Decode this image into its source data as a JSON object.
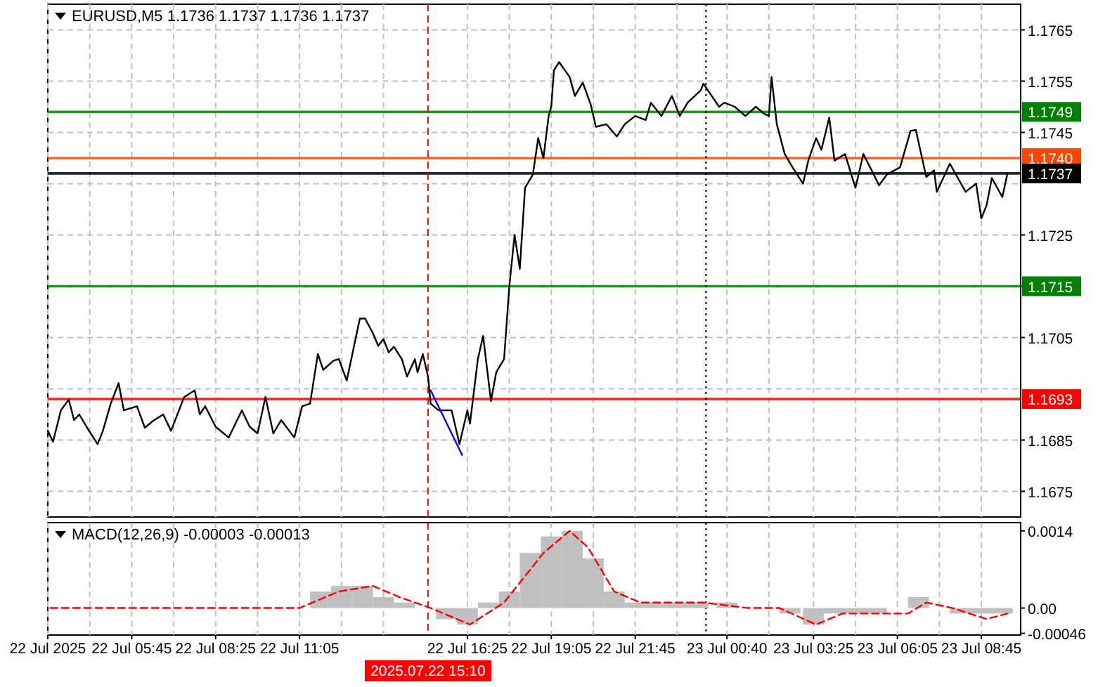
{
  "chart_data": [
    {
      "type": "line",
      "title": "EURUSD,M5 1.1736 1.1737 1.1736 1.1737",
      "xlim": [
        "2025-07-22T03:05",
        "2025-07-23T10:00"
      ],
      "ylim": [
        1.167,
        1.177
      ],
      "xticks": [
        {
          "value": "2025-07-22T03:05",
          "label": null
        },
        {
          "value": "2025-07-22T04:25",
          "label": null
        },
        {
          "value": "2025-07-22T05:45",
          "label": null
        },
        {
          "value": "2025-07-22T07:05",
          "label": null
        },
        {
          "value": "2025-07-22T08:25",
          "label": null
        },
        {
          "value": "2025-07-22T09:45",
          "label": null
        },
        {
          "value": "2025-07-22T11:05",
          "label": null
        },
        {
          "value": "2025-07-22T12:25",
          "label": null
        },
        {
          "value": "2025-07-22T13:45",
          "label": null
        },
        {
          "value": "2025-07-22T16:25",
          "label": null
        },
        {
          "value": "2025-07-22T17:45",
          "label": null
        },
        {
          "value": "2025-07-22T19:05",
          "label": null
        },
        {
          "value": "2025-07-22T20:25",
          "label": null
        },
        {
          "value": "2025-07-22T21:45",
          "label": null
        },
        {
          "value": "2025-07-22T23:05",
          "label": null
        },
        {
          "value": "2025-07-23T00:40",
          "label": null
        },
        {
          "value": "2025-07-23T02:00",
          "label": null
        },
        {
          "value": "2025-07-23T03:25",
          "label": null
        },
        {
          "value": "2025-07-23T04:45",
          "label": null
        },
        {
          "value": "2025-07-23T06:05",
          "label": null
        },
        {
          "value": "2025-07-23T07:25",
          "label": null
        },
        {
          "value": "2025-07-23T08:45",
          "label": null
        }
      ],
      "yticks": [
        1.1675,
        1.1685,
        {
          "value": 1.1695,
          "label": null
        },
        1.1705,
        1.1715,
        1.1725,
        {
          "value": 1.1735,
          "label": null
        },
        1.1745,
        1.1755,
        1.1765
      ],
      "tick_labels": "y",
      "grid": true,
      "series": [
        {
          "color": "#000000",
          "x": [
            "2025-07-22T03:05",
            "2025-07-22T03:15",
            "2025-07-22T03:30",
            "2025-07-22T03:45",
            "2025-07-22T03:55",
            "2025-07-22T04:05",
            "2025-07-22T04:20",
            "2025-07-22T04:40",
            "2025-07-22T04:50",
            "2025-07-22T05:05",
            "2025-07-22T05:20",
            "2025-07-22T05:30",
            "2025-07-22T05:55",
            "2025-07-22T06:10",
            "2025-07-22T06:25",
            "2025-07-22T06:45",
            "2025-07-22T07:00",
            "2025-07-22T07:25",
            "2025-07-22T07:45",
            "2025-07-22T07:55",
            "2025-07-22T08:05",
            "2025-07-22T08:25",
            "2025-07-22T08:50",
            "2025-07-22T09:15",
            "2025-07-22T09:30",
            "2025-07-22T09:45",
            "2025-07-22T10:00",
            "2025-07-22T10:15",
            "2025-07-22T10:30",
            "2025-07-22T10:55",
            "2025-07-22T11:10",
            "2025-07-22T11:25",
            "2025-07-22T11:40",
            "2025-07-22T11:50",
            "2025-07-22T12:10",
            "2025-07-22T12:20",
            "2025-07-22T12:35",
            "2025-07-22T13:00",
            "2025-07-22T13:10",
            "2025-07-22T13:25",
            "2025-07-22T13:35",
            "2025-07-22T13:45",
            "2025-07-22T13:55",
            "2025-07-22T14:05",
            "2025-07-22T14:20",
            "2025-07-22T14:30",
            "2025-07-22T14:45",
            "2025-07-22T14:50",
            "2025-07-22T15:00",
            "2025-07-22T15:10",
            "2025-07-22T15:15",
            "2025-07-22T15:30",
            "2025-07-22T15:55",
            "2025-07-22T16:10",
            "2025-07-22T16:25",
            "2025-07-22T16:30",
            "2025-07-22T16:45",
            "2025-07-22T16:55",
            "2025-07-22T17:10",
            "2025-07-22T17:20",
            "2025-07-22T17:35",
            "2025-07-22T17:45",
            "2025-07-22T17:55",
            "2025-07-22T18:05",
            "2025-07-22T18:15",
            "2025-07-22T18:30",
            "2025-07-22T18:40",
            "2025-07-22T18:50",
            "2025-07-22T19:00",
            "2025-07-22T19:05",
            "2025-07-22T19:10",
            "2025-07-22T19:20",
            "2025-07-22T19:40",
            "2025-07-22T19:50",
            "2025-07-22T20:05",
            "2025-07-22T20:20",
            "2025-07-22T20:30",
            "2025-07-22T20:50",
            "2025-07-22T21:10",
            "2025-07-22T21:25",
            "2025-07-22T21:45",
            "2025-07-22T22:05",
            "2025-07-22T22:15",
            "2025-07-22T22:35",
            "2025-07-22T22:55",
            "2025-07-22T23:10",
            "2025-07-22T23:25",
            "2025-07-22T23:50",
            "2025-07-22T23:55",
            "2025-07-23T00:25",
            "2025-07-23T00:35",
            "2025-07-23T00:55",
            "2025-07-23T01:15",
            "2025-07-23T01:35",
            "2025-07-23T01:50",
            "2025-07-23T02:00",
            "2025-07-23T02:05",
            "2025-07-23T02:15",
            "2025-07-23T02:30",
            "2025-07-23T02:45",
            "2025-07-23T03:05",
            "2025-07-23T03:15",
            "2025-07-23T03:30",
            "2025-07-23T03:40",
            "2025-07-23T03:55",
            "2025-07-23T04:05",
            "2025-07-23T04:25",
            "2025-07-23T04:45",
            "2025-07-23T05:00",
            "2025-07-23T05:30",
            "2025-07-23T05:45",
            "2025-07-23T06:10",
            "2025-07-23T06:30",
            "2025-07-23T06:40",
            "2025-07-23T07:00",
            "2025-07-23T07:15",
            "2025-07-23T07:20",
            "2025-07-23T07:45",
            "2025-07-23T08:15",
            "2025-07-23T08:35",
            "2025-07-23T08:45",
            "2025-07-23T08:55",
            "2025-07-23T09:05",
            "2025-07-23T09:25",
            "2025-07-23T09:35"
          ],
          "values": [
            1.16868,
            1.16847,
            1.16908,
            1.16929,
            1.16889,
            1.169,
            1.16874,
            1.16842,
            1.16868,
            1.16921,
            1.16961,
            1.16908,
            1.16916,
            1.16874,
            1.16887,
            1.169,
            1.16868,
            1.16934,
            1.16947,
            1.169,
            1.16916,
            1.16876,
            1.16855,
            1.16908,
            1.16876,
            1.16863,
            1.16934,
            1.16863,
            1.16889,
            1.16855,
            1.16916,
            1.16921,
            1.17018,
            1.16987,
            1.17005,
            1.17008,
            1.16966,
            1.17087,
            1.17087,
            1.17058,
            1.17034,
            1.17047,
            1.17021,
            1.17032,
            1.17008,
            1.16974,
            1.17008,
            1.16982,
            1.17018,
            1.16974,
            1.16921,
            1.16908,
            1.16908,
            1.16842,
            1.16908,
            1.16882,
            1.17008,
            1.17053,
            1.16926,
            1.16982,
            1.17008,
            1.1715,
            1.1725,
            1.17184,
            1.17342,
            1.17368,
            1.17439,
            1.174,
            1.17482,
            1.175,
            1.17571,
            1.17587,
            1.17558,
            1.17521,
            1.17547,
            1.17505,
            1.17461,
            1.17466,
            1.17442,
            1.17466,
            1.17482,
            1.17474,
            1.17508,
            1.17482,
            1.17521,
            1.17482,
            1.17508,
            1.17532,
            1.17545,
            1.175,
            1.17508,
            1.175,
            1.17482,
            1.175,
            1.17487,
            1.17482,
            1.17558,
            1.17466,
            1.17408,
            1.17382,
            1.1735,
            1.17395,
            1.17439,
            1.17416,
            1.17479,
            1.17395,
            1.17408,
            1.17342,
            1.17408,
            1.17347,
            1.17368,
            1.17382,
            1.17453,
            1.17455,
            1.17363,
            1.17376,
            1.17334,
            1.17389,
            1.17334,
            1.1735,
            1.17282,
            1.17308,
            1.17361,
            1.17324,
            1.17371
          ]
        },
        {
          "color": "#0000ff",
          "x": [
            "2025-07-22T15:15",
            "2025-07-22T16:15"
          ],
          "values": [
            1.16947,
            1.16821
          ]
        }
      ],
      "ref_lines": [
        {
          "axis": "y",
          "value": 1.1749,
          "label": "1.1749",
          "color": "#008000"
        },
        {
          "axis": "y",
          "value": 1.174,
          "label": "1.1740",
          "color": "#ff4500"
        },
        {
          "axis": "y",
          "value": 1.1737,
          "label": "1.1737",
          "color": "#000000"
        },
        {
          "axis": "y",
          "value": 1.1715,
          "label": "1.1715",
          "color": "#008000"
        },
        {
          "axis": "y",
          "value": 1.1693,
          "label": "1.1693",
          "color": "#ff0000"
        },
        {
          "axis": "x",
          "value": "2025-07-22T15:10",
          "color": "#ff0000",
          "line_style": "dashed"
        },
        {
          "axis": "x",
          "value": "2025-07-23T00:00",
          "color": "#000000",
          "line_style": "dotted"
        }
      ]
    },
    {
      "type": "bar",
      "title": "MACD(12,26,9) -0.00003 -0.00013",
      "xlim": [
        "2025-07-22T03:05",
        "2025-07-23T10:00"
      ],
      "ylim": [
        -0.00049,
        0.00155
      ],
      "xticks": [
        {
          "value": "2025-07-22T03:05",
          "label": "22 Jul 2025"
        },
        {
          "value": "2025-07-22T04:25",
          "label": null
        },
        {
          "value": "2025-07-22T05:45",
          "label": "22 Jul 05:45"
        },
        {
          "value": "2025-07-22T07:05",
          "label": null
        },
        {
          "value": "2025-07-22T08:25",
          "label": "22 Jul 08:25"
        },
        {
          "value": "2025-07-22T09:45",
          "label": null
        },
        {
          "value": "2025-07-22T11:05",
          "label": "22 Jul 11:05"
        },
        {
          "value": "2025-07-22T12:25",
          "label": null
        },
        {
          "value": "2025-07-22T13:45",
          "label": null
        },
        {
          "value": "2025-07-22T16:25",
          "label": "22 Jul 16:25"
        },
        {
          "value": "2025-07-22T17:45",
          "label": null
        },
        {
          "value": "2025-07-22T19:05",
          "label": "22 Jul 19:05"
        },
        {
          "value": "2025-07-22T20:25",
          "label": null
        },
        {
          "value": "2025-07-22T21:45",
          "label": "22 Jul 21:45"
        },
        {
          "value": "2025-07-22T23:05",
          "label": null
        },
        {
          "value": "2025-07-23T00:40",
          "label": "23 Jul 00:40"
        },
        {
          "value": "2025-07-23T02:00",
          "label": null
        },
        {
          "value": "2025-07-23T03:25",
          "label": "23 Jul 03:25"
        },
        {
          "value": "2025-07-23T04:45",
          "label": null
        },
        {
          "value": "2025-07-23T06:05",
          "label": "23 Jul 06:05"
        },
        {
          "value": "2025-07-23T07:25",
          "label": null
        },
        {
          "value": "2025-07-23T08:45",
          "label": "23 Jul 08:45"
        }
      ],
      "yticks": [
        -0.00046,
        {
          "value": 0,
          "label": "0.00"
        },
        0.0014
      ],
      "grid": "x",
      "series": [
        {
          "color": "#c0c0c0",
          "x": [
            "2025-07-22T03:05",
            "2025-07-22T03:45",
            "2025-07-22T04:25",
            "2025-07-22T05:05",
            "2025-07-22T05:45",
            "2025-07-22T06:25",
            "2025-07-22T07:05",
            "2025-07-22T07:45",
            "2025-07-22T08:25",
            "2025-07-22T09:05",
            "2025-07-22T09:45",
            "2025-07-22T10:25",
            "2025-07-22T11:05",
            "2025-07-22T11:45",
            "2025-07-22T12:25",
            "2025-07-22T13:05",
            "2025-07-22T13:45",
            "2025-07-22T14:25",
            "2025-07-22T15:05",
            "2025-07-22T15:45",
            "2025-07-22T16:25",
            "2025-07-22T17:05",
            "2025-07-22T17:45",
            "2025-07-22T18:25",
            "2025-07-22T19:05",
            "2025-07-22T19:45",
            "2025-07-22T20:25",
            "2025-07-22T21:05",
            "2025-07-22T21:45",
            "2025-07-22T22:25",
            "2025-07-22T23:05",
            "2025-07-22T23:45",
            "2025-07-23T00:40",
            "2025-07-23T01:20",
            "2025-07-23T02:00",
            "2025-07-23T02:40",
            "2025-07-23T03:25",
            "2025-07-23T04:05",
            "2025-07-23T04:45",
            "2025-07-23T05:25",
            "2025-07-23T06:05",
            "2025-07-23T06:45",
            "2025-07-23T07:25",
            "2025-07-23T08:05",
            "2025-07-23T08:45",
            "2025-07-23T09:25"
          ],
          "values": [
            0,
            0,
            0,
            0,
            0,
            0,
            0,
            0,
            0,
            0,
            0,
            0,
            0,
            0.0003,
            0.0004,
            0.0004,
            0.0002,
            0.0001,
            0,
            -0.0002,
            -0.0003,
            0.0001,
            0.0003,
            0.001,
            0.0013,
            0.0014,
            0.0009,
            0.0003,
            0.0001,
            0.0001,
            0.0001,
            0.0001,
            0.0001,
            0,
            0,
            -0.0001,
            -0.0003,
            -0.0001,
            -0.0001,
            -0.0001,
            0,
            0.0002,
            0,
            -0.0001,
            -0.0001,
            -0.0001
          ]
        },
        {
          "type": "line",
          "color": "#ff0000",
          "line_style": "dashed",
          "x": [
            "2025-07-22T03:10",
            "2025-07-22T05:05",
            "2025-07-22T07:10",
            "2025-07-22T09:15",
            "2025-07-22T11:05",
            "2025-07-22T12:20",
            "2025-07-22T13:25",
            "2025-07-22T14:15",
            "2025-07-22T15:15",
            "2025-07-22T16:30",
            "2025-07-22T17:35",
            "2025-07-22T18:50",
            "2025-07-22T19:40",
            "2025-07-22T20:15",
            "2025-07-22T21:05",
            "2025-07-22T21:55",
            "2025-07-22T23:00",
            "2025-07-22T23:55",
            "2025-07-23T01:20",
            "2025-07-23T02:20",
            "2025-07-23T03:30",
            "2025-07-23T04:20",
            "2025-07-23T05:20",
            "2025-07-23T06:25",
            "2025-07-23T07:00",
            "2025-07-23T07:50",
            "2025-07-23T08:55",
            "2025-07-23T09:35"
          ],
          "values": [
            0,
            0,
            0,
            0,
            0,
            0.0003,
            0.0004,
            0.0002,
            0,
            -0.0003,
            0.0001,
            0.001,
            0.0014,
            0.0011,
            0.0003,
            0.0001,
            0.0001,
            0.0001,
            0,
            0,
            -0.0003,
            -0.0001,
            -0.0001,
            -0.0001,
            0.0001,
            0,
            -0.0002,
            -0.0001
          ]
        }
      ],
      "ref_lines": [
        {
          "axis": "x",
          "value": "2025-07-22T15:10",
          "label": "2025.07.22 15:10",
          "color": "#ff0000",
          "line_style": "dashed"
        },
        {
          "axis": "x",
          "value": "2025-07-23T00:00",
          "color": "#000000",
          "line_style": "dotted"
        }
      ]
    }
  ]
}
